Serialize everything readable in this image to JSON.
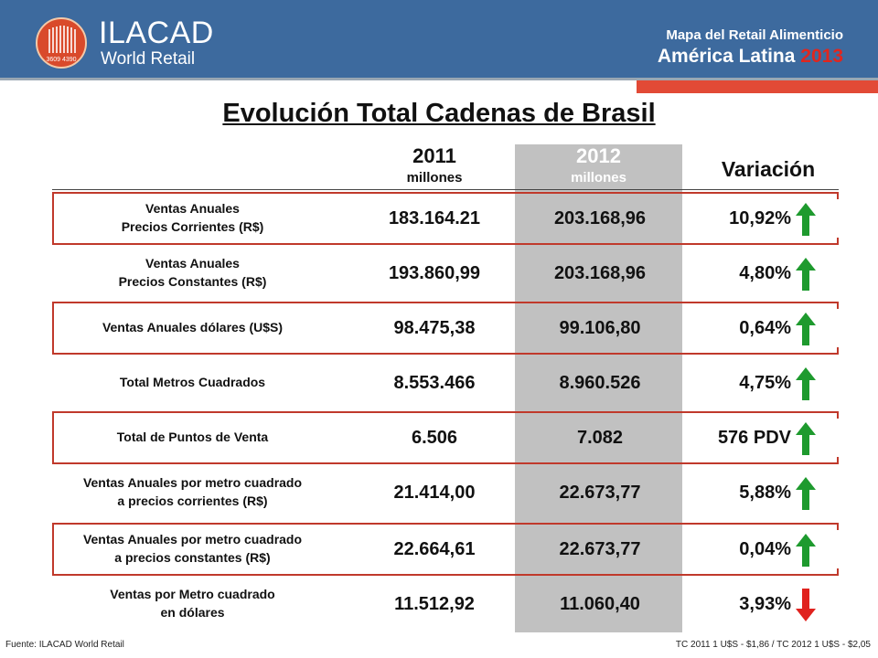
{
  "header": {
    "brand_name": "ILACAD",
    "brand_sub": "World Retail",
    "logo_text": "3609 4390",
    "map_title": "Mapa del Retail Alimenticio",
    "region": "América Latina",
    "region_year": "2013",
    "colors": {
      "bg": "#3d6a9e",
      "accent": "#e24a36",
      "year": "#e0261e"
    }
  },
  "title": "Evolución Total Cadenas de Brasil",
  "columns": {
    "y2011": "2011",
    "y2011_unit": "millones",
    "y2012": "2012",
    "y2012_unit": "millones",
    "variation": "Variación"
  },
  "rows": [
    {
      "label1": "Ventas Anuales",
      "label2": "Precios Corrientes  (R$)",
      "v2011": "183.164.21",
      "v2012": "203.168,96",
      "var": "10,92%",
      "trend": "up",
      "bracket": true
    },
    {
      "label1": "Ventas Anuales",
      "label2": "Precios Constantes  (R$)",
      "v2011": "193.860,99",
      "v2012": "203.168,96",
      "var": "4,80%",
      "trend": "up",
      "bracket": false
    },
    {
      "label1": "Ventas Anuales dólares  (U$S)",
      "label2": "",
      "v2011": "98.475,38",
      "v2012": "99.106,80",
      "var": "0,64%",
      "trend": "up",
      "bracket": true
    },
    {
      "label1": "Total Metros Cuadrados",
      "label2": "",
      "v2011": "8.553.466",
      "v2012": "8.960.526",
      "var": "4,75%",
      "trend": "up",
      "bracket": false
    },
    {
      "label1": "Total de Puntos de Venta",
      "label2": "",
      "v2011": "6.506",
      "v2012": "7.082",
      "var": "576 PDV",
      "trend": "up",
      "bracket": true
    },
    {
      "label1": "Ventas Anuales por metro cuadrado",
      "label2": "a precios corrientes (R$)",
      "v2011": "21.414,00",
      "v2012": "22.673,77",
      "var": "5,88%",
      "trend": "up",
      "bracket": false
    },
    {
      "label1": "Ventas Anuales por metro cuadrado",
      "label2": "a precios constantes (R$)",
      "v2011": "22.664,61",
      "v2012": "22.673,77",
      "var": "0,04%",
      "trend": "up",
      "bracket": true
    },
    {
      "label1": "Ventas  por  Metro cuadrado",
      "label2": "en dólares",
      "v2011": "11.512,92",
      "v2012": "11.060,40",
      "var": "3,93%",
      "trend": "down",
      "bracket": false
    }
  ],
  "arrow_colors": {
    "up": "#1e9a2e",
    "down": "#e0221e"
  },
  "footer": {
    "source": "Fuente: ILACAD World Retail",
    "exchange": "TC 2011 1 U$S - $1,86 / TC 2012 1 U$S - $2,05"
  }
}
